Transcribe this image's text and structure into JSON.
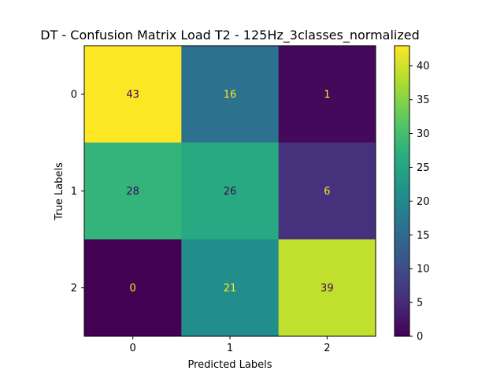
{
  "chart_data": {
    "type": "heatmap",
    "title": "DT - Confusion Matrix Load T2 - 125Hz_3classes_normalized",
    "xlabel": "Predicted Labels",
    "ylabel": "True Labels",
    "x_categories": [
      "0",
      "1",
      "2"
    ],
    "y_categories": [
      "0",
      "1",
      "2"
    ],
    "values": [
      [
        43,
        16,
        1
      ],
      [
        28,
        26,
        6
      ],
      [
        0,
        21,
        39
      ]
    ],
    "colormap": "viridis",
    "color_range": [
      0,
      43
    ],
    "colorbar_ticks": [
      "0",
      "5",
      "10",
      "15",
      "20",
      "25",
      "30",
      "35",
      "40"
    ],
    "colors": {
      "low_value_text": "#fde725",
      "high_value_text": "#440154"
    },
    "grid": false
  }
}
